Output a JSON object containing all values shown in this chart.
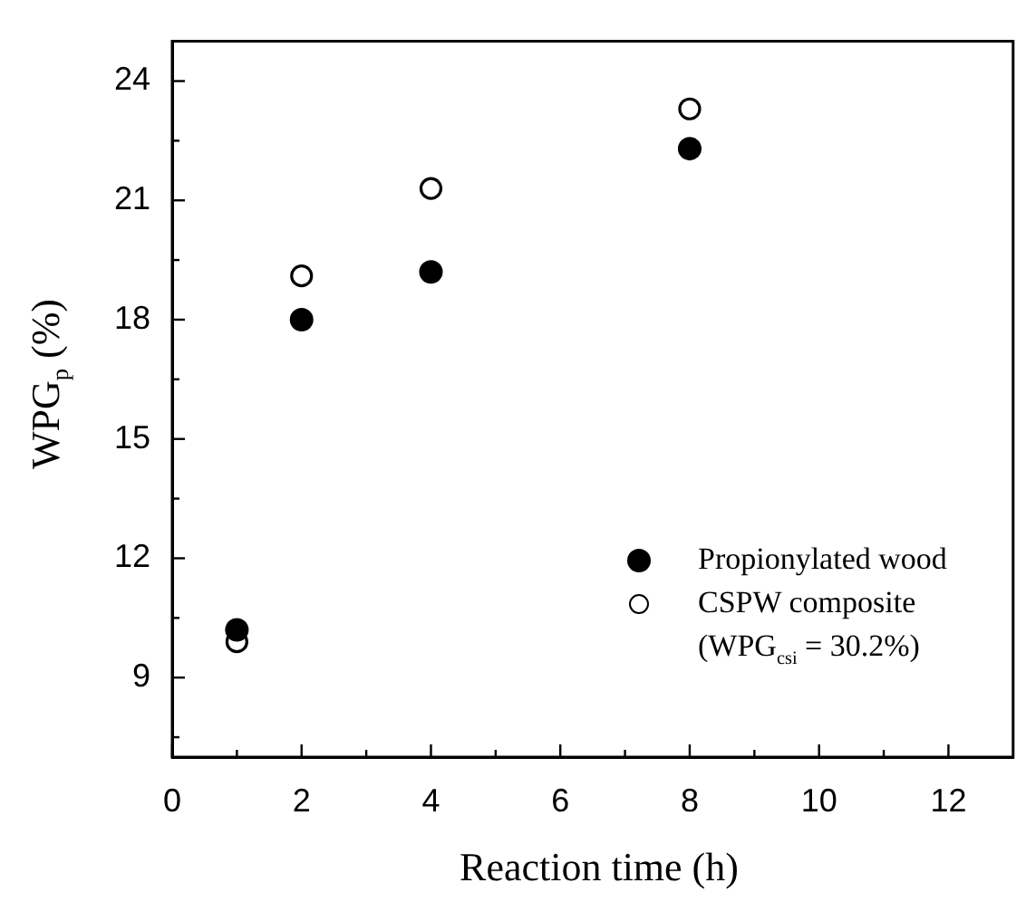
{
  "chart_data": {
    "type": "scatter",
    "xlabel": "Reaction time (h)",
    "ylabel": "WPG$_{p}$ (%)",
    "x": [
      1,
      2,
      4,
      8
    ],
    "series": [
      {
        "name": "Propionylated wood",
        "color": "#000000",
        "values": [
          10.2,
          18.0,
          19.2,
          22.3
        ]
      },
      {
        "name": "CSPW composite (WPG$_{csi}$ = 30.2%)",
        "color": "#000000",
        "values": [
          9.9,
          19.1,
          21.3,
          23.3
        ]
      }
    ],
    "xlim": [
      0,
      13
    ],
    "ylim": [
      7,
      25
    ],
    "xticks": [
      0,
      {
        "value": 1,
        "label": null
      },
      2,
      {
        "value": 3,
        "label": null
      },
      4,
      {
        "value": 5,
        "label": null
      },
      6,
      {
        "value": 7,
        "label": null
      },
      8,
      {
        "value": 9,
        "label": null
      },
      10,
      {
        "value": 11,
        "label": null
      },
      12
    ],
    "yticks": [
      {
        "value": 7.5,
        "label": null
      },
      9,
      {
        "value": 10.5,
        "label": null
      },
      12,
      {
        "value": 13.5,
        "label": null
      },
      15,
      {
        "value": 16.5,
        "label": null
      },
      18,
      {
        "value": 19.5,
        "label": null
      },
      21,
      {
        "value": 22.5,
        "label": null
      },
      24
    ],
    "marker": "circle",
    "legend": "bottom right",
    "grid": false
  }
}
